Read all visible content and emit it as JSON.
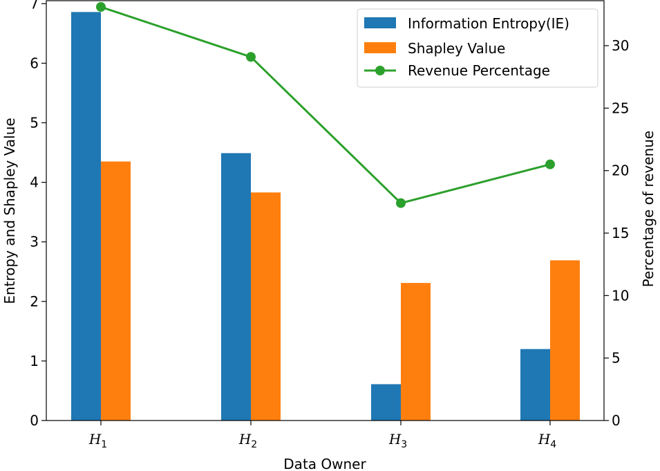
{
  "chart_data": {
    "type": "bar",
    "title": "",
    "xlabel": "Data Owner",
    "ylabel": "Entropy and Shapley Value",
    "y2label": "Percentage of revenue",
    "categories": [
      {
        "main": "H",
        "sub": "1"
      },
      {
        "main": "H",
        "sub": "2"
      },
      {
        "main": "H",
        "sub": "3"
      },
      {
        "main": "H",
        "sub": "4"
      }
    ],
    "ylim": [
      0,
      7.05
    ],
    "y2lim": [
      0,
      33.6
    ],
    "yticks": [
      0,
      1,
      2,
      3,
      4,
      5,
      6,
      7
    ],
    "y2ticks": [
      0,
      5,
      10,
      15,
      20,
      25,
      30
    ],
    "series": [
      {
        "name": "Information Entropy(IE)",
        "kind": "bar",
        "axis": "left",
        "color": "#1f77b4",
        "values": [
          6.86,
          4.49,
          0.61,
          1.2
        ]
      },
      {
        "name": "Shapley Value",
        "kind": "bar",
        "axis": "left",
        "color": "#ff7f0e",
        "values": [
          4.35,
          3.83,
          2.31,
          2.69
        ]
      },
      {
        "name": "Revenue Percentage",
        "kind": "line",
        "axis": "right",
        "color": "#2ca02c",
        "values": [
          33.1,
          29.1,
          17.4,
          20.5
        ]
      }
    ],
    "legend_position": "top-right",
    "grid": false
  }
}
